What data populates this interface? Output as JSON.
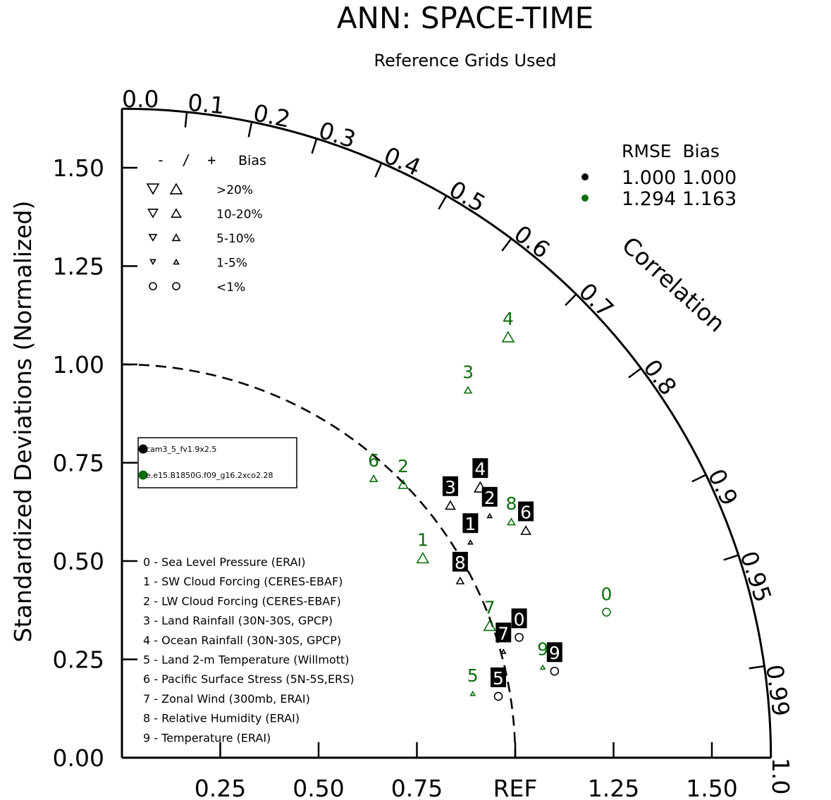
{
  "chart_data": {
    "type": "taylor",
    "title": "ANN: SPACE-TIME",
    "subtitle": "Reference Grids Used",
    "ylabel": "Standardized Deviations (Normalized)",
    "xlabel_ref": "REF",
    "correlation_label": "Correlation",
    "std_ticks": [
      "0.00",
      "0.25",
      "0.50",
      "0.75",
      "1.00",
      "1.25",
      "1.50"
    ],
    "x_ticks": [
      "0.25",
      "0.50",
      "0.75",
      "REF",
      "1.25",
      "1.50"
    ],
    "std_max": 1.65,
    "corr_ticks": [
      {
        "r": 0.0,
        "label": "0.0"
      },
      {
        "r": 0.1,
        "label": "0.1"
      },
      {
        "r": 0.2,
        "label": "0.2"
      },
      {
        "r": 0.3,
        "label": "0.3"
      },
      {
        "r": 0.4,
        "label": "0.4"
      },
      {
        "r": 0.5,
        "label": "0.5"
      },
      {
        "r": 0.6,
        "label": "0.6"
      },
      {
        "r": 0.7,
        "label": "0.7"
      },
      {
        "r": 0.8,
        "label": "0.8"
      },
      {
        "r": 0.9,
        "label": "0.9"
      },
      {
        "r": 0.95,
        "label": "0.95"
      },
      {
        "r": 0.99,
        "label": "0.99"
      },
      {
        "r": 1.0,
        "label": "1.0"
      }
    ],
    "bias_legend": {
      "header_sign": "-  /  +",
      "header_label": "Bias",
      "rows": [
        {
          "label": ">20%",
          "symbol": "tri",
          "size": 16
        },
        {
          "label": "10-20%",
          "symbol": "tri",
          "size": 13
        },
        {
          "label": "5-10%",
          "symbol": "tri",
          "size": 10
        },
        {
          "label": "1-5%",
          "symbol": "tri",
          "size": 7
        },
        {
          "label": "<1%",
          "symbol": "circle",
          "size": 8
        }
      ]
    },
    "rmse_legend": {
      "header": "RMSE  Bias",
      "rows": [
        {
          "color": "#000000",
          "rmse": "1.000",
          "bias": "1.000"
        },
        {
          "color": "#0b6e0b",
          "rmse": "1.294",
          "bias": "1.163"
        }
      ]
    },
    "series": [
      {
        "name": "cam3_5_fv1.9x2.5",
        "color": "#000000",
        "label_style": "boxed",
        "points": [
          {
            "id": "0",
            "x": 1.01,
            "y": 0.306,
            "bias": "circle"
          },
          {
            "id": "1",
            "x": 0.886,
            "y": 0.548,
            "bias": "tri6"
          },
          {
            "id": "2",
            "x": 0.935,
            "y": 0.615,
            "bias": "tri6"
          },
          {
            "id": "3",
            "x": 0.835,
            "y": 0.642,
            "bias": "tri13"
          },
          {
            "id": "4",
            "x": 0.911,
            "y": 0.688,
            "bias": "tri16"
          },
          {
            "id": "5",
            "x": 0.957,
            "y": 0.156,
            "bias": "circle"
          },
          {
            "id": "6",
            "x": 1.027,
            "y": 0.578,
            "bias": "tri13"
          },
          {
            "id": "7",
            "x": 0.97,
            "y": 0.27,
            "bias": "tri6"
          },
          {
            "id": "8",
            "x": 0.86,
            "y": 0.45,
            "bias": "tri10"
          },
          {
            "id": "9",
            "x": 1.1,
            "y": 0.22,
            "bias": "circle"
          }
        ]
      },
      {
        "name": "e.e15.B1850G.f09_g16.2xco2.28",
        "color": "#0b6e0b",
        "label_style": "plain",
        "points": [
          {
            "id": "0",
            "x": 1.232,
            "y": 0.37,
            "bias": "circle"
          },
          {
            "id": "1",
            "x": 0.765,
            "y": 0.508,
            "bias": "tri16"
          },
          {
            "id": "2",
            "x": 0.715,
            "y": 0.695,
            "bias": "tri13"
          },
          {
            "id": "3",
            "x": 0.88,
            "y": 0.935,
            "bias": "tri10"
          },
          {
            "id": "4",
            "x": 0.982,
            "y": 1.07,
            "bias": "tri16"
          },
          {
            "id": "5",
            "x": 0.892,
            "y": 0.163,
            "bias": "tri6"
          },
          {
            "id": "6",
            "x": 0.64,
            "y": 0.71,
            "bias": "tri10"
          },
          {
            "id": "7",
            "x": 0.935,
            "y": 0.336,
            "bias": "tri16"
          },
          {
            "id": "8",
            "x": 0.99,
            "y": 0.6,
            "bias": "tri10"
          },
          {
            "id": "9",
            "x": 1.07,
            "y": 0.23,
            "bias": "tri6"
          }
        ]
      }
    ],
    "variables": [
      "0 - Sea Level Pressure (ERAI)",
      "1 - SW Cloud Forcing (CERES-EBAF)",
      "2 - LW Cloud Forcing (CERES-EBAF)",
      "3 - Land Rainfall (30N-30S, GPCP)",
      "4 - Ocean Rainfall (30N-30S, GPCP)",
      "5 - Land 2-m Temperature (Willmott)",
      "6 - Pacific Surface Stress (5N-5S,ERS)",
      "7 - Zonal Wind (300mb, ERAI)",
      "8 - Relative Humidity (ERAI)",
      "9 - Temperature (ERAI)"
    ],
    "case_legend": [
      {
        "name": "cam3_5_fv1.9x2.5",
        "color": "#000000"
      },
      {
        "name": "e.e15.B1850G.f09_g16.2xco2.28",
        "color": "#0b6e0b"
      }
    ]
  }
}
